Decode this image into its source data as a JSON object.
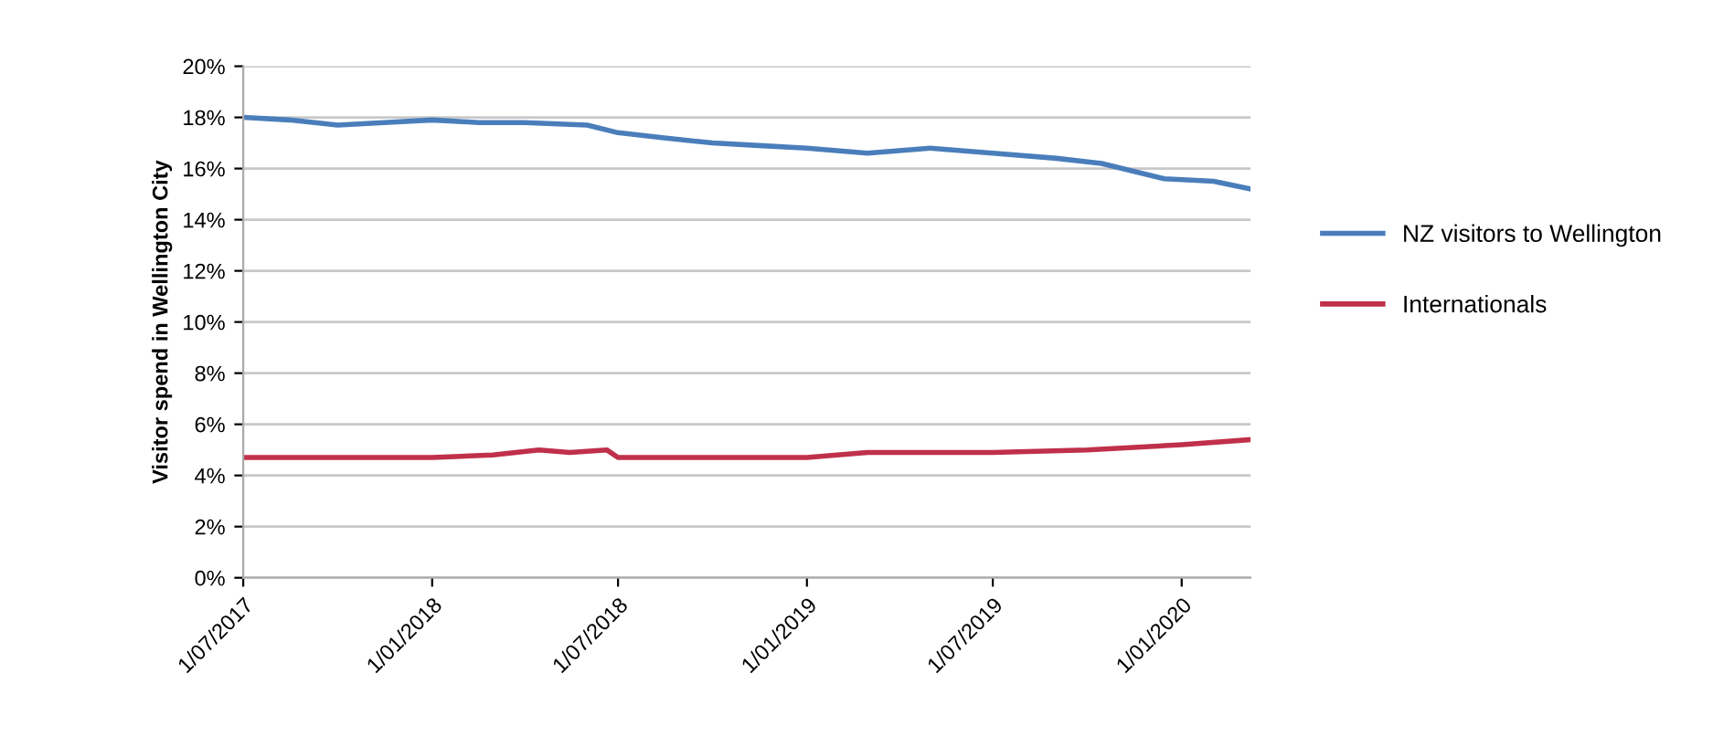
{
  "chart_data": {
    "type": "line",
    "ylabel": "Visitor spend in Wellington City",
    "xlim": [
      "2017-07-01",
      "2020-03-08"
    ],
    "xticks": [
      {
        "value": "2017-07-01",
        "label": "1/07/2017"
      },
      {
        "value": "2018-01-01",
        "label": "1/01/2018"
      },
      {
        "value": "2018-07-01",
        "label": "1/07/2018"
      },
      {
        "value": "2019-01-01",
        "label": "1/01/2019"
      },
      {
        "value": "2019-07-01",
        "label": "1/07/2019"
      },
      {
        "value": "2020-01-01",
        "label": "1/01/2020"
      }
    ],
    "ylim": [
      0,
      20
    ],
    "yticks": [
      {
        "value": 0,
        "label": "0%"
      },
      {
        "value": 2,
        "label": "2%"
      },
      {
        "value": 4,
        "label": "4%"
      },
      {
        "value": 6,
        "label": "6%"
      },
      {
        "value": 8,
        "label": "8%"
      },
      {
        "value": 10,
        "label": "10%"
      },
      {
        "value": 12,
        "label": "12%"
      },
      {
        "value": 14,
        "label": "14%"
      },
      {
        "value": 16,
        "label": "16%"
      },
      {
        "value": 18,
        "label": "18%"
      },
      {
        "value": 20,
        "label": "20%"
      }
    ],
    "grid": "y",
    "legend": "right",
    "series": [
      {
        "name": "NZ visitors to Wellington",
        "color": "#4a7ebb",
        "x": [
          "2017-07-01",
          "2017-08-15",
          "2017-10-01",
          "2017-11-15",
          "2018-01-01",
          "2018-02-15",
          "2018-04-01",
          "2018-06-01",
          "2018-07-01",
          "2018-08-15",
          "2018-10-01",
          "2018-11-15",
          "2019-01-01",
          "2019-03-01",
          "2019-05-01",
          "2019-07-01",
          "2019-09-01",
          "2019-10-15",
          "2019-12-15",
          "2020-02-01",
          "2020-03-08"
        ],
        "values": [
          18.0,
          17.9,
          17.7,
          17.8,
          17.9,
          17.8,
          17.8,
          17.7,
          17.4,
          17.2,
          17.0,
          16.9,
          16.8,
          16.6,
          16.8,
          16.6,
          16.4,
          16.2,
          15.6,
          15.5,
          15.2
        ]
      },
      {
        "name": "Internationals",
        "color": "#c0304a",
        "x": [
          "2017-07-01",
          "2017-10-01",
          "2018-01-01",
          "2018-03-01",
          "2018-04-15",
          "2018-05-15",
          "2018-06-20",
          "2018-07-01",
          "2018-10-01",
          "2019-01-01",
          "2019-03-01",
          "2019-07-01",
          "2019-10-01",
          "2020-01-01",
          "2020-03-08"
        ],
        "values": [
          4.7,
          4.7,
          4.7,
          4.8,
          5.0,
          4.9,
          5.0,
          4.7,
          4.7,
          4.7,
          4.9,
          4.9,
          5.0,
          5.2,
          5.4
        ]
      }
    ]
  }
}
